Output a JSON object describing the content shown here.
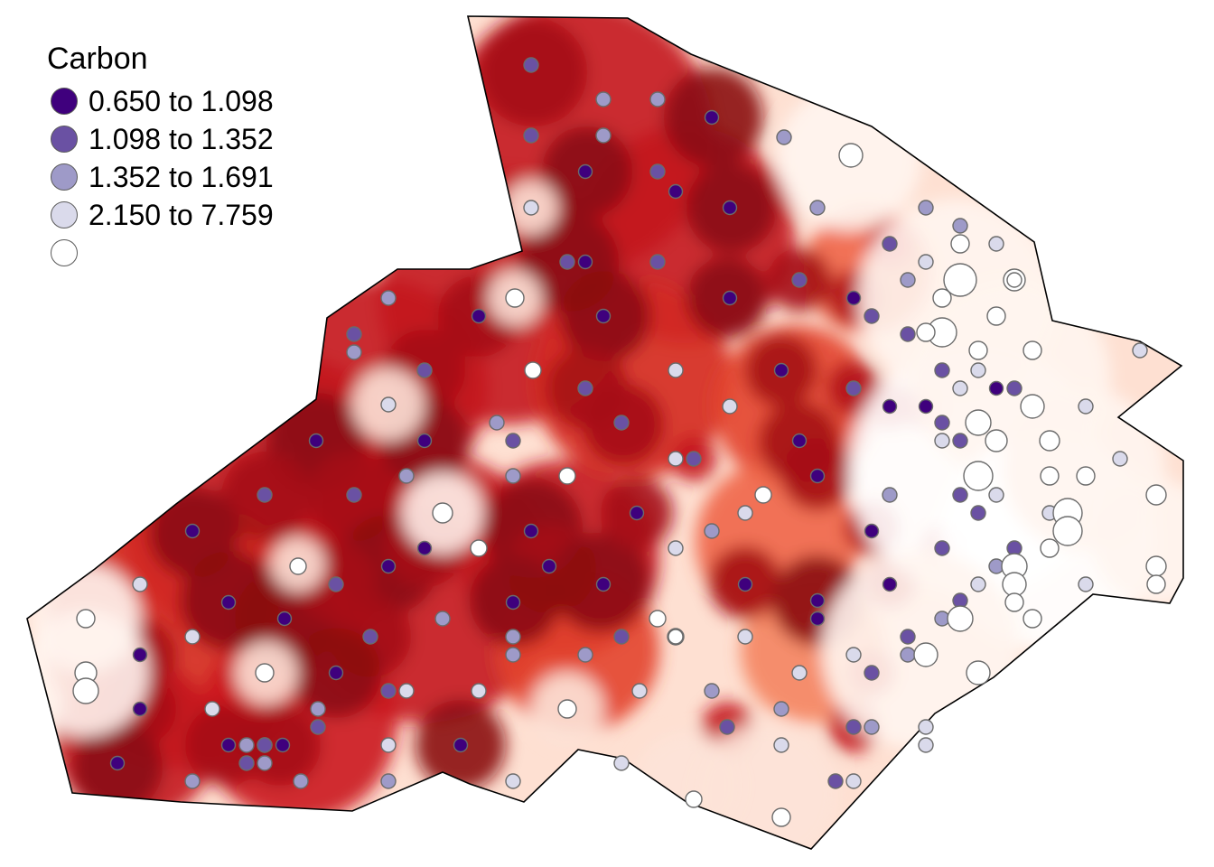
{
  "legend": {
    "title": "Carbon",
    "classes": [
      {
        "label": "0.650 to 1.098",
        "color": "#3f007d"
      },
      {
        "label": "1.098 to 1.352",
        "color": "#6a51a3"
      },
      {
        "label": "1.352 to 1.691",
        "color": "#9e9ac8"
      },
      {
        "label": "2.150 to 7.759",
        "color": "#ffffff"
      }
    ]
  },
  "surface_palette": [
    "#67000d",
    "#cb181d",
    "#fb6a4a",
    "#fcbba1",
    "#fff5f0"
  ],
  "outline_color": "#000000"
}
